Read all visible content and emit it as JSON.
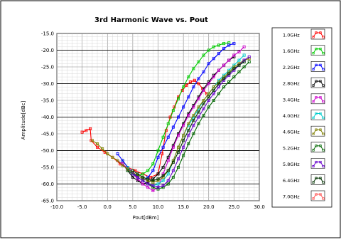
{
  "chart_data": {
    "type": "line",
    "title": "3rd Harmonic Wave vs. Pout",
    "xlabel": "Pout[dBm]",
    "ylabel": "Amplitude[dBc]",
    "xlim": [
      -10,
      30
    ],
    "ylim": [
      -65,
      -15
    ],
    "x_ticks": [
      "-10.0",
      "-5.0",
      "0.0",
      "5.0",
      "10.0",
      "15.0",
      "20.0",
      "25.0",
      "30.0"
    ],
    "y_ticks": [
      "-15.0",
      "-20.0",
      "-25.0",
      "-30.0",
      "-35.0",
      "-40.0",
      "-45.0",
      "-50.0",
      "-55.0",
      "-60.0",
      "-65.0"
    ],
    "grid": true,
    "legend_position": "right",
    "series": [
      {
        "name": "1.0GHz",
        "color": "#ff0000",
        "points": [
          [
            -5,
            -44.5
          ],
          [
            -4.2,
            -44
          ],
          [
            -3.4,
            -43.5
          ],
          [
            -3.2,
            -47
          ],
          [
            -2,
            -49
          ],
          [
            -0.5,
            -50.5
          ],
          [
            1,
            -52
          ],
          [
            2.5,
            -54
          ],
          [
            4,
            -55
          ],
          [
            5.5,
            -56
          ],
          [
            7,
            -57
          ],
          [
            8.5,
            -58
          ],
          [
            10,
            -57
          ],
          [
            10.8,
            -51
          ],
          [
            11.6,
            -44
          ],
          [
            12.4,
            -40
          ],
          [
            13.2,
            -37
          ],
          [
            14,
            -34
          ],
          [
            14.8,
            -32
          ],
          [
            15.6,
            -30.5
          ],
          [
            16.4,
            -29.5
          ],
          [
            17.2,
            -29
          ],
          [
            18,
            -30
          ],
          [
            18.8,
            -31.5
          ],
          [
            19.6,
            -33
          ]
        ]
      },
      {
        "name": "1.6GHz",
        "color": "#00cc00",
        "points": [
          [
            3,
            -53
          ],
          [
            4,
            -55
          ],
          [
            5,
            -57
          ],
          [
            6,
            -57.5
          ],
          [
            7,
            -57
          ],
          [
            8,
            -56
          ],
          [
            9,
            -54
          ],
          [
            10,
            -50
          ],
          [
            11,
            -46
          ],
          [
            12,
            -42
          ],
          [
            13,
            -38
          ],
          [
            14,
            -34.5
          ],
          [
            15,
            -31
          ],
          [
            16,
            -28
          ],
          [
            17,
            -25.5
          ],
          [
            18,
            -23.5
          ],
          [
            19,
            -21.5
          ],
          [
            20,
            -20
          ],
          [
            21,
            -19
          ],
          [
            22,
            -18.5
          ],
          [
            23,
            -18
          ],
          [
            24,
            -17.8
          ]
        ]
      },
      {
        "name": "2.2GHz",
        "color": "#0000ff",
        "points": [
          [
            2,
            -51
          ],
          [
            3,
            -53
          ],
          [
            4,
            -55
          ],
          [
            5,
            -56.5
          ],
          [
            6,
            -58
          ],
          [
            7,
            -59
          ],
          [
            8,
            -58
          ],
          [
            9,
            -56
          ],
          [
            10,
            -52
          ],
          [
            11,
            -49
          ],
          [
            12,
            -46
          ],
          [
            13,
            -43
          ],
          [
            14,
            -40
          ],
          [
            15,
            -37
          ],
          [
            16,
            -34
          ],
          [
            17,
            -31
          ],
          [
            18,
            -28.5
          ],
          [
            19,
            -26.5
          ],
          [
            20,
            -24
          ],
          [
            21,
            -22.5
          ],
          [
            22,
            -21
          ],
          [
            23,
            -19.5
          ],
          [
            24,
            -18.5
          ],
          [
            25,
            -18
          ]
        ]
      },
      {
        "name": "2.8GHz",
        "color": "#000000",
        "points": [
          [
            3,
            -54
          ],
          [
            4,
            -56
          ],
          [
            5,
            -58
          ],
          [
            6,
            -59
          ],
          [
            7,
            -60
          ],
          [
            8,
            -59.5
          ],
          [
            9,
            -58.5
          ],
          [
            10,
            -57
          ],
          [
            11,
            -55
          ],
          [
            12,
            -52
          ],
          [
            13,
            -48.5
          ],
          [
            14,
            -45
          ],
          [
            15,
            -42
          ],
          [
            16,
            -39
          ],
          [
            17,
            -36.5
          ],
          [
            18,
            -34
          ],
          [
            19,
            -31.5
          ],
          [
            20,
            -29.5
          ],
          [
            21,
            -27.5
          ],
          [
            22,
            -26
          ],
          [
            23,
            -24.5
          ],
          [
            24,
            -23
          ],
          [
            25,
            -22
          ]
        ]
      },
      {
        "name": "3.4GHz",
        "color": "#cc00cc",
        "points": [
          [
            2,
            -53
          ],
          [
            3,
            -54
          ],
          [
            4,
            -55.5
          ],
          [
            5,
            -57
          ],
          [
            6,
            -58.5
          ],
          [
            7,
            -60
          ],
          [
            8,
            -61
          ],
          [
            9,
            -62
          ],
          [
            10,
            -61
          ],
          [
            11,
            -57
          ],
          [
            12,
            -53
          ],
          [
            13,
            -49
          ],
          [
            14,
            -45.5
          ],
          [
            15,
            -42.5
          ],
          [
            16,
            -39.5
          ],
          [
            17,
            -37
          ],
          [
            18,
            -34.5
          ],
          [
            19,
            -32
          ],
          [
            20,
            -30
          ],
          [
            21,
            -28
          ],
          [
            22,
            -26
          ],
          [
            23,
            -24.5
          ],
          [
            24,
            -23
          ],
          [
            25,
            -21.5
          ],
          [
            26,
            -20.5
          ],
          [
            27,
            -19
          ]
        ]
      },
      {
        "name": "4.0GHz",
        "color": "#00cccc",
        "points": [
          [
            4,
            -55
          ],
          [
            5,
            -57
          ],
          [
            6,
            -58
          ],
          [
            7,
            -59
          ],
          [
            8,
            -60
          ],
          [
            9,
            -60.5
          ],
          [
            10,
            -60
          ],
          [
            11,
            -59
          ],
          [
            12,
            -57
          ],
          [
            13,
            -53
          ],
          [
            14,
            -49
          ],
          [
            15,
            -45.5
          ],
          [
            16,
            -42.5
          ],
          [
            17,
            -40
          ],
          [
            18,
            -37.5
          ],
          [
            19,
            -35
          ],
          [
            20,
            -33
          ],
          [
            21,
            -31
          ],
          [
            22,
            -29
          ],
          [
            23,
            -27.5
          ],
          [
            24,
            -26
          ],
          [
            25,
            -24.5
          ],
          [
            26,
            -23
          ],
          [
            27,
            -21.5
          ]
        ]
      },
      {
        "name": "4.6GHz",
        "color": "#808000",
        "points": [
          [
            -3,
            -47
          ],
          [
            -2,
            -48
          ],
          [
            -1,
            -49.5
          ],
          [
            0,
            -51
          ],
          [
            1,
            -52
          ],
          [
            2,
            -53
          ],
          [
            3,
            -54.5
          ],
          [
            4,
            -55.5
          ],
          [
            5,
            -56.5
          ],
          [
            6,
            -57.5
          ],
          [
            7,
            -58.5
          ],
          [
            8,
            -59
          ],
          [
            9,
            -59.5
          ],
          [
            10,
            -59
          ],
          [
            11,
            -58
          ],
          [
            12,
            -56
          ],
          [
            13,
            -53
          ],
          [
            14,
            -49
          ],
          [
            15,
            -45.5
          ],
          [
            16,
            -42
          ],
          [
            17,
            -39.5
          ],
          [
            18,
            -37
          ],
          [
            19,
            -35
          ],
          [
            20,
            -33
          ],
          [
            21,
            -31
          ],
          [
            22,
            -29.5
          ],
          [
            23,
            -28
          ],
          [
            24,
            -26.5
          ],
          [
            25,
            -25
          ],
          [
            26,
            -24
          ],
          [
            27,
            -23
          ],
          [
            28,
            -22.5
          ]
        ]
      },
      {
        "name": "5.2GHz",
        "color": "#006600",
        "points": [
          [
            4,
            -56
          ],
          [
            5,
            -57
          ],
          [
            6,
            -58
          ],
          [
            7,
            -59
          ],
          [
            8,
            -60
          ],
          [
            9,
            -61
          ],
          [
            10,
            -61.5
          ],
          [
            11,
            -61
          ],
          [
            12,
            -60
          ],
          [
            13,
            -58
          ],
          [
            14,
            -55
          ],
          [
            15,
            -51.5
          ],
          [
            16,
            -48
          ],
          [
            17,
            -45
          ],
          [
            18,
            -42
          ],
          [
            19,
            -39.5
          ],
          [
            20,
            -37
          ],
          [
            21,
            -35
          ],
          [
            22,
            -33
          ],
          [
            23,
            -31
          ],
          [
            24,
            -29.5
          ],
          [
            25,
            -28
          ],
          [
            26,
            -26.5
          ],
          [
            27,
            -25
          ],
          [
            28,
            -23.5
          ]
        ]
      },
      {
        "name": "5.8GHz",
        "color": "#6600cc",
        "points": [
          [
            5,
            -57
          ],
          [
            6,
            -58
          ],
          [
            7,
            -59
          ],
          [
            8,
            -60
          ],
          [
            9,
            -60.5
          ],
          [
            10,
            -61
          ],
          [
            11,
            -60.5
          ],
          [
            12,
            -59
          ],
          [
            13,
            -56
          ],
          [
            14,
            -52.5
          ],
          [
            15,
            -49
          ],
          [
            16,
            -45.5
          ],
          [
            17,
            -42.5
          ],
          [
            18,
            -40
          ],
          [
            19,
            -37.5
          ],
          [
            20,
            -35
          ],
          [
            21,
            -33
          ],
          [
            22,
            -31
          ],
          [
            23,
            -29
          ],
          [
            24,
            -27.5
          ],
          [
            25,
            -26
          ],
          [
            26,
            -24.5
          ],
          [
            27,
            -23
          ],
          [
            28,
            -22
          ]
        ]
      },
      {
        "name": "6.4GHz",
        "color": "#003300",
        "points": [
          [
            5,
            -56
          ],
          [
            6,
            -57
          ],
          [
            7,
            -58
          ],
          [
            8,
            -58.5
          ],
          [
            9,
            -59
          ],
          [
            10,
            -58.5
          ],
          [
            11,
            -57.5
          ],
          [
            12,
            -56
          ],
          [
            13,
            -53.5
          ],
          [
            14,
            -50.5
          ],
          [
            15,
            -47
          ],
          [
            16,
            -44
          ],
          [
            17,
            -41
          ],
          [
            18,
            -38.5
          ],
          [
            19,
            -36
          ],
          [
            20,
            -34
          ],
          [
            21,
            -32
          ],
          [
            22,
            -30
          ],
          [
            23,
            -28.5
          ],
          [
            24,
            -27
          ],
          [
            25,
            -25.5
          ],
          [
            26,
            -24.5
          ],
          [
            27,
            -23.5
          ]
        ]
      },
      {
        "name": "7.0GHz",
        "color": "#ff5555",
        "points": []
      }
    ]
  }
}
